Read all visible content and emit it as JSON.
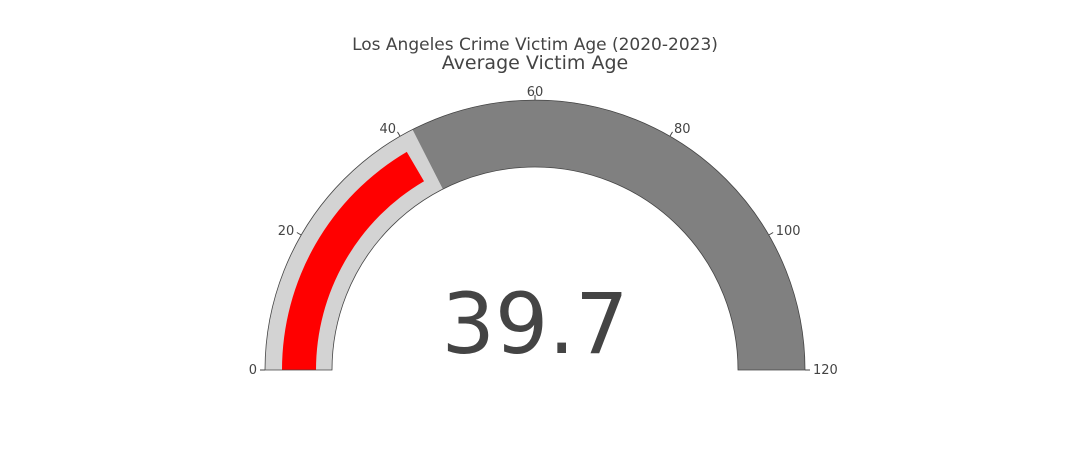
{
  "chart_data": {
    "type": "gauge",
    "title": "Los Angeles Crime Victim Age (2020-2023)",
    "subtitle": "Average Victim Age",
    "value": 39.7,
    "value_label": "39.7",
    "range": [
      0,
      120
    ],
    "ticks": [
      {
        "value": 0,
        "label": "0"
      },
      {
        "value": 20,
        "label": "20"
      },
      {
        "value": 40,
        "label": "40"
      },
      {
        "value": 60,
        "label": "60"
      },
      {
        "value": 80,
        "label": "80"
      },
      {
        "value": 100,
        "label": "100"
      },
      {
        "value": 120,
        "label": "120"
      }
    ],
    "steps": [
      {
        "range": [
          0,
          42
        ],
        "color": "#d3d3d3"
      },
      {
        "range": [
          42,
          120
        ],
        "color": "#808080"
      }
    ],
    "bar_color": "#ff0000",
    "background_color": "#ffffff"
  }
}
